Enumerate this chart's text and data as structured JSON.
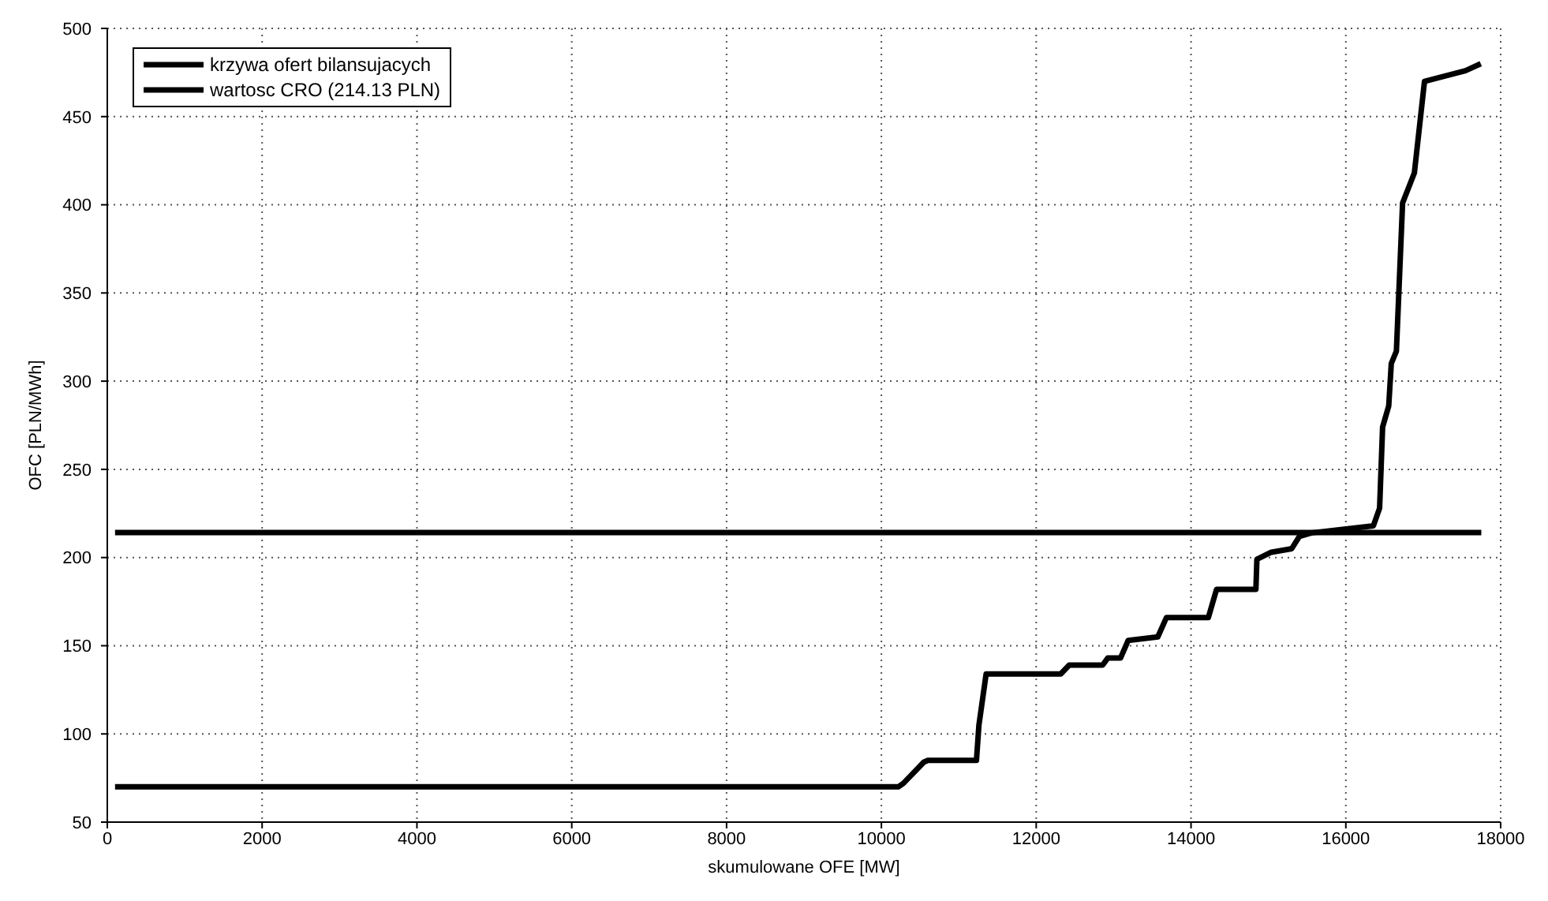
{
  "chart_data": {
    "type": "line",
    "xlabel": "skumulowane OFE [MW]",
    "ylabel": "OFC [PLN/MWh]",
    "series": [
      {
        "name": "krzywa ofert bilansujacych",
        "color": "#000000",
        "x": [
          100,
          10218,
          10284,
          10548,
          10600,
          11228,
          11260,
          11353,
          12317,
          12426,
          12858,
          12924,
          13089,
          13188,
          13571,
          13683,
          14224,
          14330,
          14838,
          14851,
          15036,
          15300,
          15400,
          15558,
          16356,
          16436,
          16475,
          16554,
          16587,
          16653,
          16733,
          16885,
          17016,
          17545,
          17743
        ],
        "values": [
          70,
          70,
          72,
          84,
          85,
          85,
          105,
          134,
          134,
          139,
          139,
          143,
          143,
          153,
          155,
          166,
          166,
          182,
          182,
          199,
          203,
          205,
          212,
          214,
          218,
          228,
          274,
          286,
          310,
          317,
          401,
          418,
          470,
          476,
          480
        ]
      },
      {
        "name": "wartosc CRO (214.13 PLN)",
        "color": "#000000",
        "x": [
          100,
          17750
        ],
        "values": [
          214.13,
          214.13
        ]
      }
    ],
    "xlim": [
      0,
      18000
    ],
    "xticks": [
      0,
      2000,
      4000,
      6000,
      8000,
      10000,
      12000,
      14000,
      16000,
      18000
    ],
    "ylim": [
      50,
      500
    ],
    "yticks": [
      50,
      100,
      150,
      200,
      250,
      300,
      350,
      400,
      450,
      500
    ],
    "grid": true,
    "legend": "top left",
    "marker": "none",
    "line_style": "solid"
  }
}
